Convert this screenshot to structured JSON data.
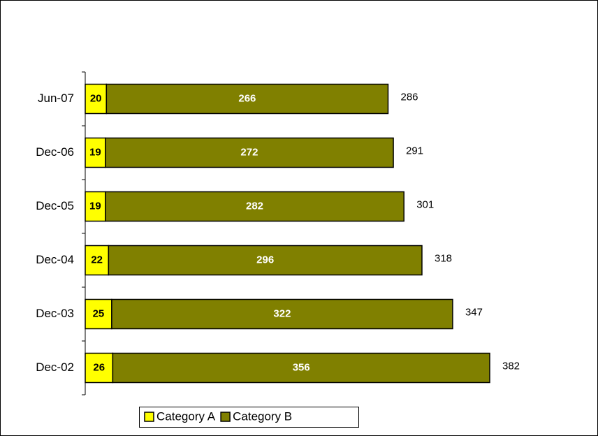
{
  "chart_data": {
    "type": "stacked-bar-horizontal",
    "categories": [
      "Dec-02",
      "Dec-03",
      "Dec-04",
      "Dec-05",
      "Dec-06",
      "Jun-07"
    ],
    "series": [
      {
        "name": "Category A",
        "color": "#ffff00",
        "values": [
          26,
          25,
          22,
          19,
          19,
          20
        ]
      },
      {
        "name": "Category B",
        "color": "#808000",
        "values": [
          356,
          322,
          296,
          282,
          272,
          266
        ]
      }
    ],
    "totals": [
      382,
      347,
      318,
      301,
      291,
      286
    ],
    "legend": "bottom"
  }
}
